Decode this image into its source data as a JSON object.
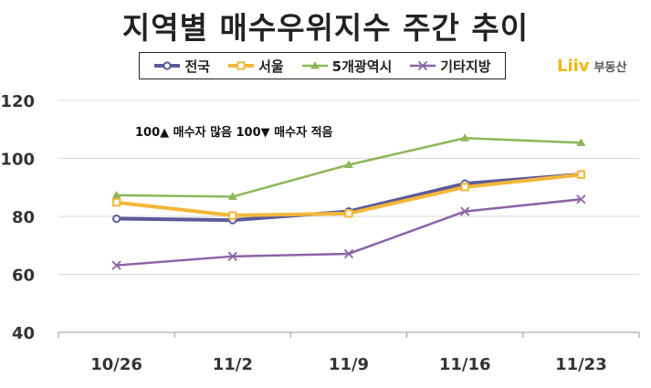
{
  "title": "지역별 매수우위지수 주간 추이",
  "brand": {
    "logo": "Liiv",
    "label": "부동산"
  },
  "annotation": "100▲ 매수자 많음 100▼ 매수자 적음",
  "colors": {
    "national": "#5b5a9a",
    "seoul": "#f2b73a",
    "metro5": "#8db65a",
    "others": "#8a64a6"
  },
  "chart_data": {
    "type": "line",
    "title": "지역별 매수우위지수 주간 추이",
    "xlabel": "",
    "ylabel": "",
    "categories": [
      "10/26",
      "11/2",
      "11/9",
      "11/16",
      "11/23"
    ],
    "ylim": [
      40,
      120
    ],
    "yticks": [
      40,
      60,
      80,
      100,
      120
    ],
    "grid": "horizontal",
    "legend_position": "top",
    "series": [
      {
        "name": "전국",
        "key": "national",
        "marker": "circle",
        "values": [
          79.2,
          78.7,
          81.7,
          91.3,
          94.5
        ]
      },
      {
        "name": "서울",
        "key": "seoul",
        "marker": "square",
        "values": [
          84.8,
          80.3,
          81.0,
          90.1,
          94.4
        ]
      },
      {
        "name": "5개광역시",
        "key": "metro5",
        "marker": "triangle",
        "values": [
          87.3,
          86.8,
          97.8,
          107.0,
          105.4
        ]
      },
      {
        "name": "기타지방",
        "key": "others",
        "marker": "cross",
        "values": [
          63.1,
          66.2,
          67.1,
          81.7,
          85.9
        ]
      }
    ]
  }
}
